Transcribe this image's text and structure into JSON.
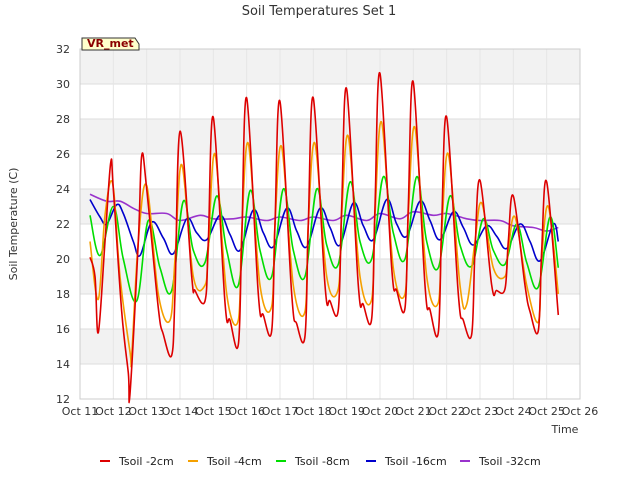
{
  "chart_data": {
    "type": "line",
    "title": "Soil Temperatures Set 1",
    "xlabel": "Time",
    "ylabel": "Soil Temperature (C)",
    "badge": "VR_met",
    "ylim": [
      12,
      32
    ],
    "xlim": [
      0,
      15
    ],
    "yticks": [
      12,
      14,
      16,
      18,
      20,
      22,
      24,
      26,
      28,
      30,
      32
    ],
    "xticks": [
      {
        "x": 0,
        "label": "Oct 11"
      },
      {
        "x": 1,
        "label": "Oct 12"
      },
      {
        "x": 2,
        "label": "Oct 13"
      },
      {
        "x": 3,
        "label": "Oct 14"
      },
      {
        "x": 4,
        "label": "Oct 15"
      },
      {
        "x": 5,
        "label": "Oct 16"
      },
      {
        "x": 6,
        "label": "Oct 17"
      },
      {
        "x": 7,
        "label": "Oct 18"
      },
      {
        "x": 8,
        "label": "Oct 19"
      },
      {
        "x": 9,
        "label": "Oct 20"
      },
      {
        "x": 10,
        "label": "Oct 21"
      },
      {
        "x": 11,
        "label": "Oct 22"
      },
      {
        "x": 12,
        "label": "Oct 23"
      },
      {
        "x": 13,
        "label": "Oct 24"
      },
      {
        "x": 14,
        "label": "Oct 25"
      },
      {
        "x": 15,
        "label": "Oct 26"
      }
    ],
    "grid": true,
    "legend_position": "bottom",
    "series": [
      {
        "name": "Tsoil -2cm",
        "color": "#dd0000",
        "x": [
          0.3,
          0.45,
          0.55,
          0.75,
          0.92,
          1.0,
          1.25,
          1.45,
          1.5,
          1.75,
          1.85,
          2.0,
          2.35,
          2.5,
          2.75,
          2.85,
          3.0,
          3.35,
          3.45,
          3.75,
          3.85,
          4.0,
          4.35,
          4.5,
          4.75,
          4.85,
          5.0,
          5.35,
          5.5,
          5.75,
          5.85,
          6.0,
          6.35,
          6.5,
          6.75,
          6.85,
          7.0,
          7.35,
          7.5,
          7.75,
          7.85,
          8.0,
          8.35,
          8.5,
          8.75,
          8.85,
          9.0,
          9.35,
          9.5,
          9.75,
          9.85,
          10.0,
          10.35,
          10.5,
          10.75,
          10.85,
          11.0,
          11.35,
          11.5,
          11.75,
          11.85,
          12.0,
          12.35,
          12.5,
          12.75,
          12.85,
          13.0,
          13.35,
          13.5,
          13.75,
          13.85,
          14.0,
          14.35
        ],
        "y": [
          20.1,
          19.0,
          15.8,
          21.0,
          25.5,
          24.0,
          17.0,
          13.5,
          12.3,
          21.0,
          25.9,
          24.0,
          17.2,
          15.7,
          14.5,
          18.0,
          27.3,
          19.0,
          18.2,
          17.6,
          21.0,
          28.1,
          17.5,
          16.5,
          15.1,
          21.0,
          29.2,
          18.0,
          16.8,
          15.9,
          22.0,
          29.0,
          18.0,
          16.3,
          15.6,
          22.0,
          29.2,
          18.5,
          17.6,
          17.1,
          23.0,
          29.7,
          18.5,
          17.4,
          16.6,
          23.0,
          30.6,
          19.5,
          18.2,
          17.2,
          23.0,
          30.1,
          18.5,
          17.1,
          15.8,
          22.0,
          28.1,
          18.0,
          16.5,
          15.7,
          20.5,
          24.5,
          18.5,
          18.2,
          18.3,
          21.0,
          23.6,
          18.5,
          17.0,
          15.9,
          20.5,
          24.4,
          16.8
        ]
      },
      {
        "name": "Tsoil -4cm",
        "color": "#f5a000",
        "x": [
          0.3,
          0.55,
          0.75,
          0.98,
          1.2,
          1.5,
          1.55,
          1.75,
          2.0,
          2.35,
          2.7,
          2.85,
          3.05,
          3.4,
          3.75,
          3.85,
          4.05,
          4.4,
          4.75,
          4.85,
          5.05,
          5.4,
          5.75,
          5.85,
          6.05,
          6.4,
          6.75,
          6.85,
          7.05,
          7.4,
          7.75,
          7.85,
          8.05,
          8.4,
          8.75,
          8.85,
          9.05,
          9.4,
          9.75,
          9.85,
          10.05,
          10.4,
          10.75,
          10.85,
          11.05,
          11.4,
          11.6,
          11.85,
          12.05,
          12.4,
          12.75,
          12.85,
          13.05,
          13.4,
          13.75,
          13.85,
          14.05,
          14.35
        ],
        "y": [
          21.0,
          17.7,
          22.5,
          24.3,
          19.0,
          14.7,
          14.5,
          21.0,
          24.2,
          18.0,
          16.5,
          20.0,
          25.4,
          19.0,
          18.5,
          20.5,
          26.0,
          18.0,
          16.5,
          21.5,
          26.6,
          18.5,
          17.3,
          22.0,
          26.4,
          18.5,
          17.0,
          22.0,
          26.6,
          19.0,
          18.3,
          22.5,
          27.0,
          19.0,
          17.7,
          22.5,
          27.8,
          19.5,
          18.0,
          22.5,
          27.5,
          19.0,
          17.5,
          21.5,
          26.0,
          18.5,
          17.4,
          21.0,
          23.2,
          19.5,
          19.0,
          20.5,
          22.4,
          18.5,
          16.4,
          20.0,
          23.0,
          18.0
        ]
      },
      {
        "name": "Tsoil -8cm",
        "color": "#00dd00",
        "x": [
          0.3,
          0.6,
          1.0,
          1.3,
          1.7,
          2.05,
          2.4,
          2.75,
          3.1,
          3.4,
          3.75,
          4.1,
          4.4,
          4.75,
          5.1,
          5.4,
          5.75,
          6.1,
          6.4,
          6.75,
          7.1,
          7.4,
          7.75,
          8.1,
          8.4,
          8.75,
          9.1,
          9.4,
          9.75,
          10.1,
          10.4,
          10.75,
          11.1,
          11.4,
          11.75,
          12.1,
          12.4,
          12.75,
          13.1,
          13.4,
          13.75,
          14.1,
          14.35
        ],
        "y": [
          22.5,
          20.2,
          23.0,
          20.0,
          17.6,
          22.2,
          19.5,
          18.2,
          23.3,
          20.5,
          19.8,
          23.6,
          20.5,
          18.5,
          23.9,
          20.5,
          19.0,
          24.0,
          20.5,
          19.0,
          24.0,
          20.8,
          19.7,
          24.4,
          21.0,
          20.0,
          24.7,
          21.5,
          20.0,
          24.7,
          21.0,
          19.5,
          23.6,
          20.8,
          19.6,
          22.3,
          20.5,
          19.7,
          22.0,
          19.8,
          18.4,
          22.4,
          19.5
        ]
      },
      {
        "name": "Tsoil -16cm",
        "color": "#0000cc",
        "x": [
          0.3,
          0.6,
          0.8,
          1.1,
          1.3,
          1.6,
          1.8,
          2.15,
          2.5,
          2.8,
          3.2,
          3.5,
          3.8,
          4.2,
          4.5,
          4.8,
          5.2,
          5.5,
          5.8,
          6.2,
          6.5,
          6.8,
          7.2,
          7.5,
          7.8,
          8.2,
          8.5,
          8.8,
          9.2,
          9.5,
          9.8,
          10.2,
          10.5,
          10.8,
          11.2,
          11.5,
          11.8,
          12.2,
          12.5,
          12.8,
          13.2,
          13.5,
          13.8,
          14.2,
          14.35
        ],
        "y": [
          23.4,
          22.4,
          22.0,
          23.1,
          22.6,
          21.0,
          20.2,
          22.1,
          21.2,
          20.3,
          22.3,
          21.5,
          21.1,
          22.5,
          21.4,
          20.5,
          22.8,
          21.5,
          20.7,
          22.9,
          21.6,
          20.7,
          22.9,
          21.8,
          20.8,
          23.2,
          21.9,
          21.1,
          23.4,
          22.0,
          21.3,
          23.3,
          22.2,
          21.1,
          22.7,
          21.8,
          20.8,
          21.9,
          21.3,
          20.6,
          22.0,
          21.0,
          19.9,
          22.0,
          21.0
        ]
      },
      {
        "name": "Tsoil -32cm",
        "color": "#9933cc",
        "x": [
          0.3,
          0.8,
          1.2,
          1.6,
          2.0,
          2.6,
          3.0,
          3.6,
          4.0,
          4.6,
          5.0,
          5.6,
          6.0,
          6.6,
          7.0,
          7.6,
          8.0,
          8.6,
          9.0,
          9.6,
          10.0,
          10.6,
          11.0,
          11.6,
          12.0,
          12.6,
          13.0,
          13.6,
          14.0,
          14.35
        ],
        "y": [
          23.7,
          23.3,
          23.3,
          22.9,
          22.6,
          22.6,
          22.2,
          22.5,
          22.3,
          22.3,
          22.4,
          22.2,
          22.4,
          22.2,
          22.4,
          22.2,
          22.5,
          22.2,
          22.6,
          22.3,
          22.7,
          22.5,
          22.6,
          22.3,
          22.2,
          22.2,
          21.9,
          21.8,
          21.6,
          21.8
        ]
      }
    ]
  }
}
